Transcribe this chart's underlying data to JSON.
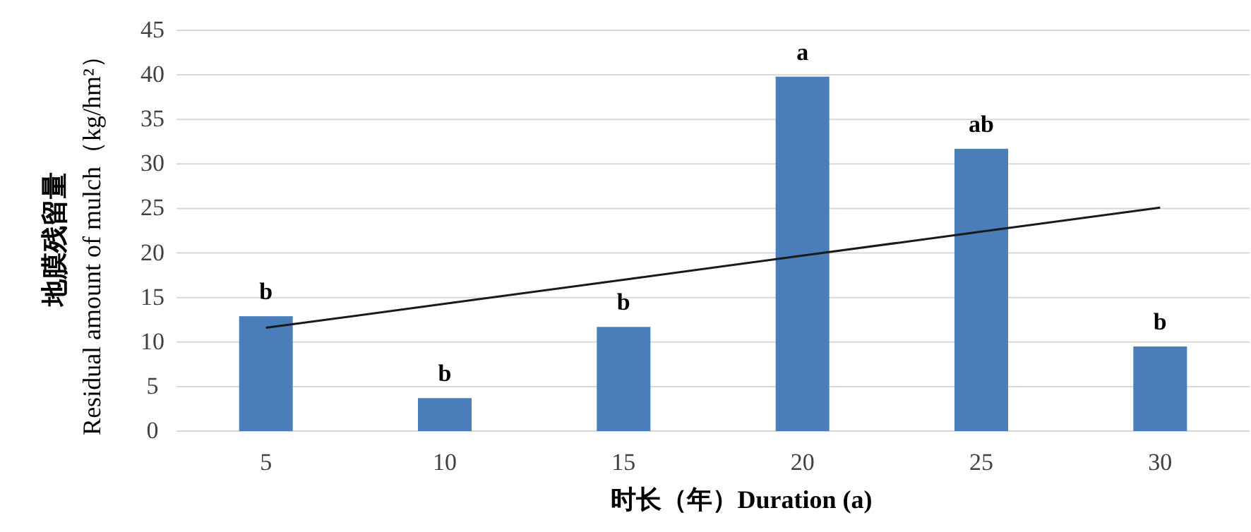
{
  "chart_data": {
    "type": "bar",
    "xlabel": "时长（年）Duration (a)",
    "ylabel": "地膜残留量\nResidual amount of mulch（kg/hm²）",
    "categories": [
      "5",
      "10",
      "15",
      "20",
      "25",
      "30"
    ],
    "series": [
      {
        "color": "#4a7ebb",
        "values": [
          12.9,
          3.7,
          11.7,
          39.8,
          31.7,
          9.5
        ]
      },
      {
        "type": "line",
        "color": "#1a1a1a",
        "values": [
          11.6,
          14.3,
          17.0,
          19.7,
          22.4,
          25.1
        ]
      }
    ],
    "ylim": [
      0,
      45
    ],
    "yticks": [
      0,
      5,
      10,
      15,
      20,
      25,
      30,
      35,
      40,
      45
    ],
    "grid": "y",
    "annotations": [
      {
        "text": "b",
        "x": "5",
        "y": 12.9
      },
      {
        "text": "b",
        "x": "10",
        "y": 3.7
      },
      {
        "text": "b",
        "x": "15",
        "y": 11.7
      },
      {
        "text": "a",
        "x": "20",
        "y": 39.8
      },
      {
        "text": "ab",
        "x": "25",
        "y": 31.7
      },
      {
        "text": "b",
        "x": "30",
        "y": 9.5
      }
    ]
  }
}
